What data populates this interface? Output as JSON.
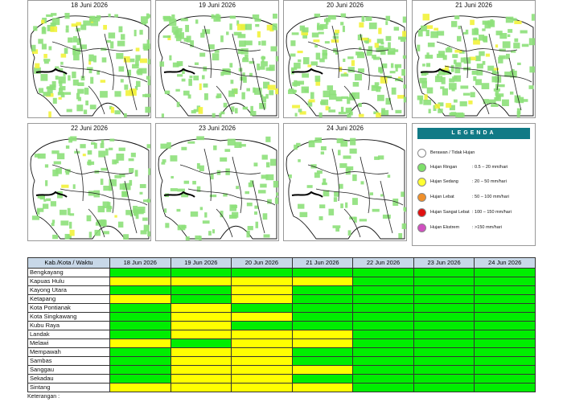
{
  "maps": {
    "panels": [
      {
        "title": "18 Juni 2026"
      },
      {
        "title": "19 Juni 2026"
      },
      {
        "title": "20 Juni 2026"
      },
      {
        "title": "21 Juni 2026"
      },
      {
        "title": "22 Juni 2026"
      },
      {
        "title": "23 Juni 2026"
      },
      {
        "title": "24 Juni 2026"
      }
    ]
  },
  "legend": {
    "title": "LEGENDA",
    "items": [
      {
        "label": "Berawan / Tidak Hujan",
        "range": "",
        "color": "#ffffff"
      },
      {
        "label": "Hujan Ringan",
        "range": ": 0.5 – 20 mm/hari",
        "color": "#7ee06a"
      },
      {
        "label": "Hujan Sedang",
        "range": ": 20 – 50 mm/hari",
        "color": "#ffff33"
      },
      {
        "label": "Hujan Lebat",
        "range": ": 50 – 100 mm/hari",
        "color": "#f0902a"
      },
      {
        "label": "Hujan Sangat Lebat",
        "range": ": 100 – 150 mm/hari",
        "color": "#e01010"
      },
      {
        "label": "Hujan Ekstrem",
        "range": ": >150 mm/hari",
        "color": "#d050c0"
      }
    ]
  },
  "table": {
    "header_first": "Kab./Kota / Waktu",
    "dates": [
      "18 Jun 2026",
      "19 Jun 2026",
      "20 Jun 2026",
      "21 Jun 2026",
      "22 Jun 2026",
      "23 Jun 2026",
      "24 Jun 2026"
    ],
    "rows": [
      {
        "name": "Bengkayang",
        "levels": [
          "g",
          "g",
          "g",
          "g",
          "g",
          "g",
          "g"
        ]
      },
      {
        "name": "Kapuas Hulu",
        "levels": [
          "y",
          "y",
          "y",
          "y",
          "g",
          "g",
          "g"
        ]
      },
      {
        "name": "Kayong Utara",
        "levels": [
          "g",
          "g",
          "y",
          "g",
          "g",
          "g",
          "g"
        ]
      },
      {
        "name": "Ketapang",
        "levels": [
          "y",
          "g",
          "y",
          "g",
          "g",
          "g",
          "g"
        ]
      },
      {
        "name": "Kota Pontianak",
        "levels": [
          "g",
          "y",
          "g",
          "g",
          "g",
          "g",
          "g"
        ]
      },
      {
        "name": "Kota Singkawang",
        "levels": [
          "g",
          "y",
          "y",
          "g",
          "g",
          "g",
          "g"
        ]
      },
      {
        "name": "Kubu Raya",
        "levels": [
          "g",
          "y",
          "g",
          "g",
          "g",
          "g",
          "g"
        ]
      },
      {
        "name": "Landak",
        "levels": [
          "g",
          "y",
          "y",
          "y",
          "g",
          "g",
          "g"
        ]
      },
      {
        "name": "Melawi",
        "levels": [
          "y",
          "g",
          "y",
          "y",
          "g",
          "g",
          "g"
        ]
      },
      {
        "name": "Mempawah",
        "levels": [
          "g",
          "y",
          "y",
          "g",
          "g",
          "g",
          "g"
        ]
      },
      {
        "name": "Sambas",
        "levels": [
          "g",
          "y",
          "y",
          "g",
          "g",
          "g",
          "g"
        ]
      },
      {
        "name": "Sanggau",
        "levels": [
          "g",
          "y",
          "y",
          "y",
          "g",
          "g",
          "g"
        ]
      },
      {
        "name": "Sekadau",
        "levels": [
          "g",
          "y",
          "y",
          "g",
          "g",
          "g",
          "g"
        ]
      },
      {
        "name": "Sintang",
        "levels": [
          "y",
          "y",
          "y",
          "y",
          "g",
          "g",
          "g"
        ]
      }
    ]
  },
  "footer": {
    "note": "Keterangan :"
  }
}
